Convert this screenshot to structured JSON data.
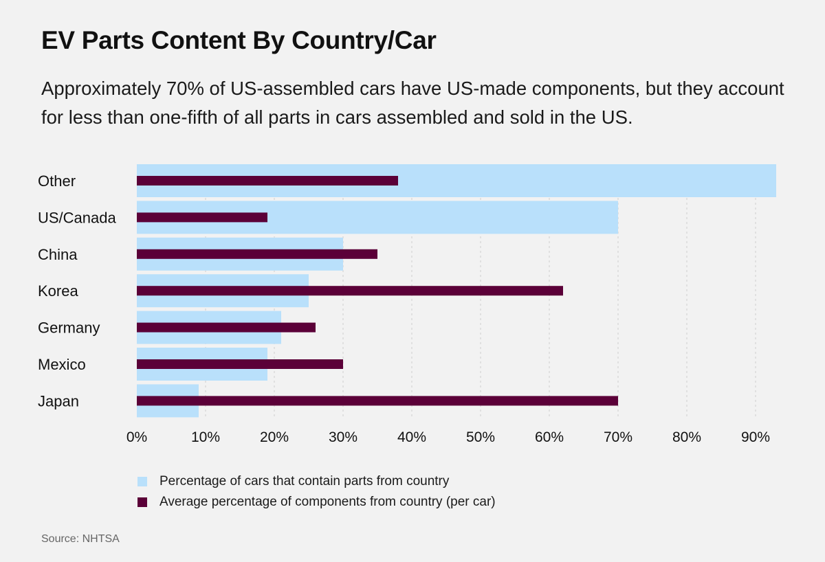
{
  "title": "EV Parts Content By Country/Car",
  "subtitle": "Approximately 70% of US-assembled cars have US-made components, but they account for less than one-fifth of all parts in cars assembled and sold in the US.",
  "source": "Source: NHTSA",
  "colors": {
    "cars_pct": "#b9e0fb",
    "components_pct": "#5b0038",
    "grid": "#cfcfcf"
  },
  "chart_data": {
    "type": "bar",
    "orientation": "horizontal",
    "categories": [
      "Other",
      "US/Canada",
      "China",
      "Korea",
      "Germany",
      "Mexico",
      "Japan"
    ],
    "series": [
      {
        "name": "Percentage of cars that contain parts from country",
        "values": [
          93,
          70,
          30,
          25,
          21,
          19,
          9
        ]
      },
      {
        "name": "Average percentage of components from country (per car)",
        "values": [
          38,
          19,
          35,
          62,
          26,
          30,
          70
        ]
      }
    ],
    "x_ticks": [
      "0%",
      "10%",
      "20%",
      "30%",
      "40%",
      "50%",
      "60%",
      "70%",
      "80%",
      "90%"
    ],
    "xlim": [
      0,
      93
    ],
    "grid": "vertical dashed",
    "legend_position": "bottom-left"
  }
}
